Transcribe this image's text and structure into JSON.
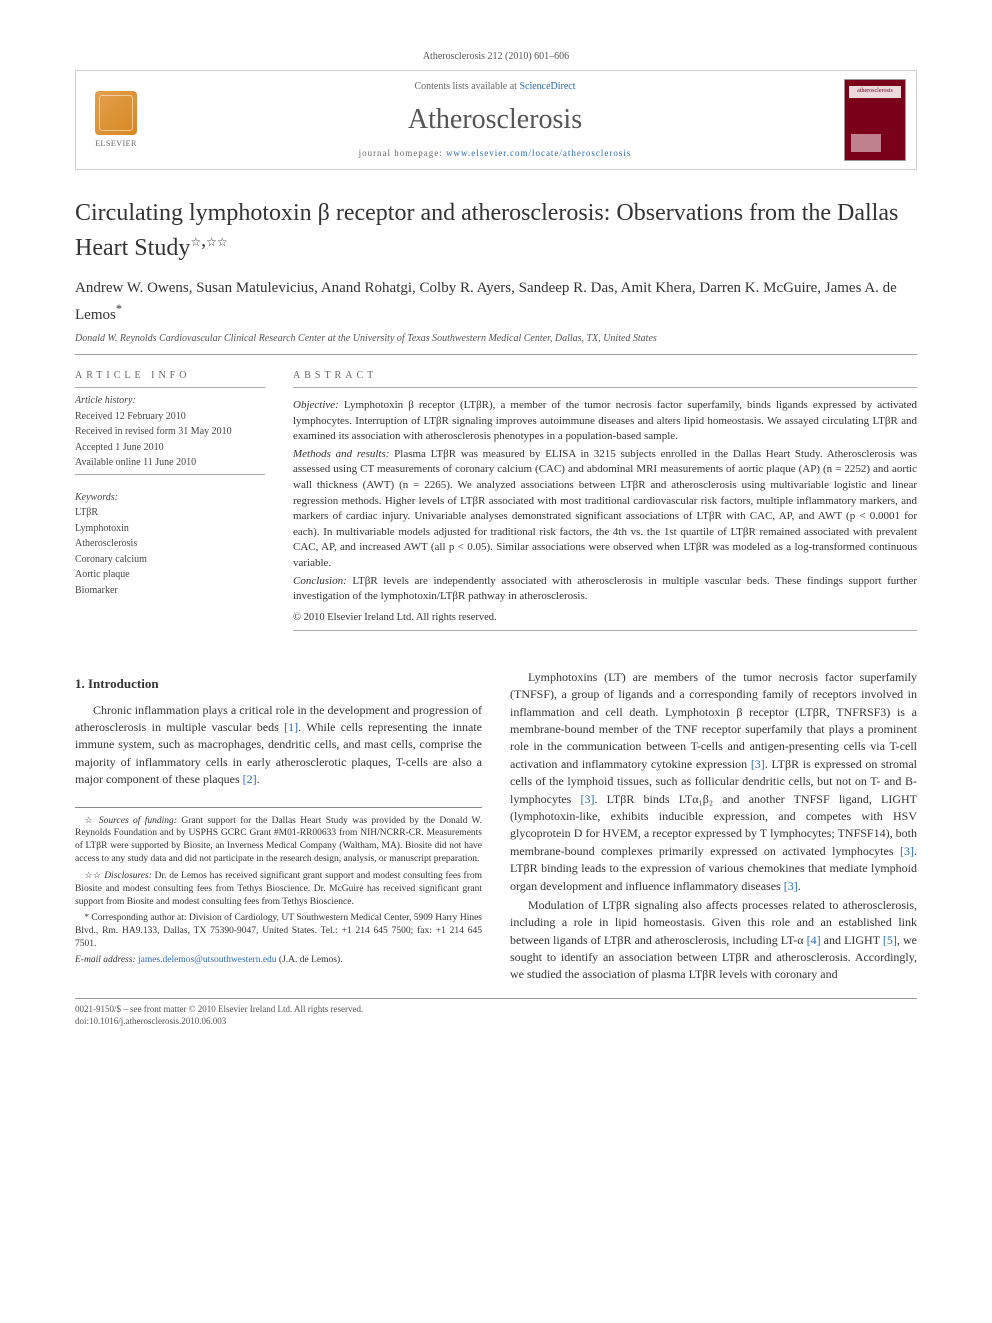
{
  "header": {
    "citation": "Atherosclerosis 212 (2010) 601–606",
    "contents_line_prefix": "Contents lists available at ",
    "sciencedirect": "ScienceDirect",
    "journal": "Atherosclerosis",
    "homepage_prefix": "journal homepage: ",
    "homepage_url": "www.elsevier.com/locate/atherosclerosis",
    "elsevier_label": "ELSEVIER",
    "cover_caption": "atherosclerosis"
  },
  "title": {
    "main": "Circulating lymphotoxin β receptor and atherosclerosis: Observations from the Dallas Heart Study",
    "star1": "☆",
    "star2": "☆☆"
  },
  "authors": "Andrew W. Owens, Susan Matulevicius, Anand Rohatgi, Colby R. Ayers, Sandeep R. Das, Amit Khera, Darren K. McGuire, James A. de Lemos",
  "corr_mark": "*",
  "affiliation": "Donald W. Reynolds Cardiovascular Clinical Research Center at the University of Texas Southwestern Medical Center, Dallas, TX, United States",
  "info": {
    "head": "ARTICLE INFO",
    "history_label": "Article history:",
    "history": [
      "Received 12 February 2010",
      "Received in revised form 31 May 2010",
      "Accepted 1 June 2010",
      "Available online 11 June 2010"
    ],
    "keywords_label": "Keywords:",
    "keywords": [
      "LTβR",
      "Lymphotoxin",
      "Atherosclerosis",
      "Coronary calcium",
      "Aortic plaque",
      "Biomarker"
    ]
  },
  "abstract": {
    "head": "ABSTRACT",
    "objective_label": "Objective:",
    "objective": " Lymphotoxin β receptor (LTβR), a member of the tumor necrosis factor superfamily, binds ligands expressed by activated lymphocytes. Interruption of LTβR signaling improves autoimmune diseases and alters lipid homeostasis. We assayed circulating LTβR and examined its association with atherosclerosis phenotypes in a population-based sample.",
    "methods_label": "Methods and results:",
    "methods": " Plasma LTβR was measured by ELISA in 3215 subjects enrolled in the Dallas Heart Study. Atherosclerosis was assessed using CT measurements of coronary calcium (CAC) and abdominal MRI measurements of aortic plaque (AP) (n = 2252) and aortic wall thickness (AWT) (n = 2265). We analyzed associations between LTβR and atherosclerosis using multivariable logistic and linear regression methods. Higher levels of LTβR associated with most traditional cardiovascular risk factors, multiple inflammatory markers, and markers of cardiac injury. Univariable analyses demonstrated significant associations of LTβR with CAC, AP, and AWT (p < 0.0001 for each). In multivariable models adjusted for traditional risk factors, the 4th vs. the 1st quartile of LTβR remained associated with prevalent CAC, AP, and increased AWT (all p < 0.05). Similar associations were observed when LTβR was modeled as a log-transformed continuous variable.",
    "conclusion_label": "Conclusion:",
    "conclusion": " LTβR levels are independently associated with atherosclerosis in multiple vascular beds. These findings support further investigation of the lymphotoxin/LTβR pathway in atherosclerosis.",
    "copyright": "© 2010 Elsevier Ireland Ltd. All rights reserved."
  },
  "body": {
    "intro_head": "1. Introduction",
    "p1": "Chronic inflammation plays a critical role in the development and progression of atherosclerosis in multiple vascular beds [1]. While cells representing the innate immune system, such as macrophages, dendritic cells, and mast cells, comprise the majority of inflammatory cells in early atherosclerotic plaques, T-cells are also a major component of these plaques [2].",
    "p2": "Lymphotoxins (LT) are members of the tumor necrosis factor superfamily (TNFSF), a group of ligands and a corresponding family of receptors involved in inflammation and cell death. Lymphotoxin β receptor (LTβR, TNFRSF3) is a membrane-bound member of the TNF receptor superfamily that plays a prominent role in the communication between T-cells and antigen-presenting cells via T-cell activation and inflammatory cytokine expression [3]. LTβR is expressed on stromal cells of the lymphoid tissues, such as follicular dendritic cells, but not on T- and B-lymphocytes [3]. LTβR binds LTα₁β₂ and another TNFSF ligand, LIGHT (lymphotoxin-like, exhibits inducible expression, and competes with HSV glycoprotein D for HVEM, a receptor expressed by T lymphocytes; TNFSF14), both membrane-bound complexes primarily expressed on activated lymphocytes [3]. LTβR binding leads to the expression of various chemokines that mediate lymphoid organ development and influence inflammatory diseases [3].",
    "p3": "Modulation of LTβR signaling also affects processes related to atherosclerosis, including a role in lipid homeostasis. Given this role and an established link between ligands of LTβR and atherosclerosis, including LT-α [4] and LIGHT [5], we sought to identify an association between LTβR and atherosclerosis. Accordingly, we studied the association of plasma LTβR levels with coronary and"
  },
  "footnotes": {
    "funding_sym": "☆",
    "funding_label": " Sources of funding:",
    "funding": " Grant support for the Dallas Heart Study was provided by the Donald W. Reynolds Foundation and by USPHS GCRC Grant #M01-RR00633 from NIH/NCRR-CR. Measurements of LTβR were supported by Biosite, an Inverness Medical Company (Waltham, MA). Biosite did not have access to any study data and did not participate in the research design, analysis, or manuscript preparation.",
    "disclosures_sym": "☆☆",
    "disclosures_label": " Disclosures:",
    "disclosures": " Dr. de Lemos has received significant grant support and modest consulting fees from Biosite and modest consulting fees from Tethys Bioscience. Dr. McGuire has received significant grant support from Biosite and modest consulting fees from Tethys Bioscience.",
    "corr_sym": "*",
    "corr": " Corresponding author at: Division of Cardiology, UT Southwestern Medical Center, 5909 Harry Hines Blvd., Rm. HA9.133, Dallas, TX 75390-9047, United States. Tel.: +1 214 645 7500; fax: +1 214 645 7501.",
    "email_label": "E-mail address:",
    "email": "james.delemos@utsouthwestern.edu",
    "email_after": " (J.A. de Lemos)."
  },
  "footer": {
    "line1": "0021-9150/$ – see front matter © 2010 Elsevier Ireland Ltd. All rights reserved.",
    "line2": "doi:10.1016/j.atherosclerosis.2010.06.003"
  },
  "colors": {
    "link": "#2a6ab5",
    "rule": "#999999",
    "cover_bg": "#7a0019"
  }
}
